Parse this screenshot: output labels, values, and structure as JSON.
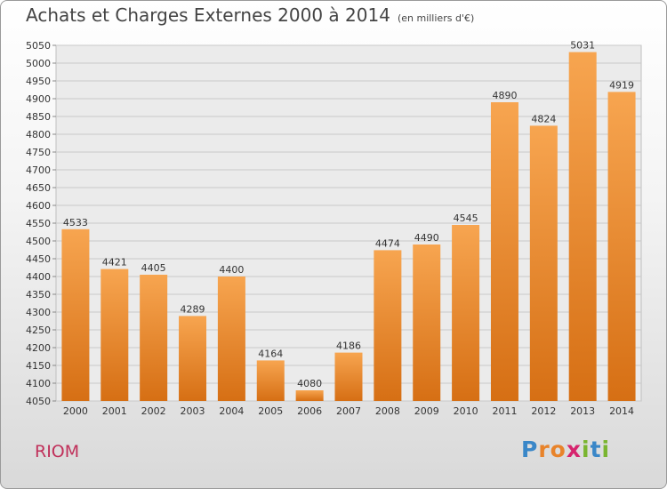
{
  "chart_data": {
    "type": "bar",
    "title": "Achats et Charges Externes 2000 à 2014",
    "subtitle": "(en milliers d'€)",
    "categories": [
      "2000",
      "2001",
      "2002",
      "2003",
      "2004",
      "2005",
      "2006",
      "2007",
      "2008",
      "2009",
      "2010",
      "2011",
      "2012",
      "2013",
      "2014"
    ],
    "values": [
      4533,
      4421,
      4405,
      4289,
      4400,
      4164,
      4080,
      4186,
      4474,
      4490,
      4545,
      4890,
      4824,
      5031,
      4919
    ],
    "data_labels": [
      "4533",
      "4421",
      "4405",
      "4289",
      "4400",
      "4164",
      "4080",
      "4186",
      "4474",
      "4490",
      "4545",
      "4890",
      "4824",
      "5031",
      "4919"
    ],
    "xlabel": "",
    "ylabel": "",
    "ylim": [
      4050,
      5050
    ],
    "yticks": [
      "4050",
      "4100",
      "4150",
      "4200",
      "4250",
      "4300",
      "4350",
      "4400",
      "4450",
      "4500",
      "4550",
      "4600",
      "4650",
      "4700",
      "4750",
      "4800",
      "4850",
      "4900",
      "4950",
      "5000",
      "5050"
    ],
    "grid": true,
    "legend": "none",
    "bar_color": "#f08a2c"
  },
  "footer": {
    "city": "RIOM",
    "logo_letters": [
      "P",
      "r",
      "o",
      "x",
      "i",
      "t",
      "i"
    ],
    "logo_colors": [
      "#3a87c8",
      "#e8832a",
      "#e8832a",
      "#d6246e",
      "#7ab530",
      "#3a87c8",
      "#7ab530"
    ]
  }
}
